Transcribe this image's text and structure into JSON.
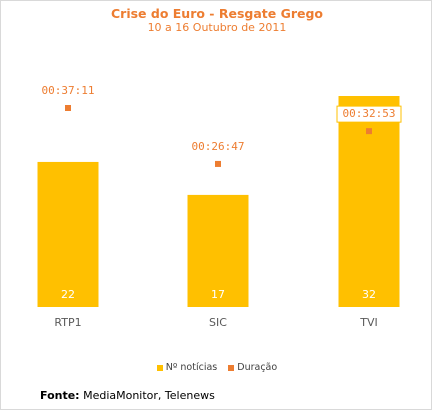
{
  "chart_data": {
    "type": "bar",
    "title": "Crise do Euro - Resgate Grego",
    "subtitle": "10 a 16 Outubro de 2011",
    "categories": [
      "RTP1",
      "SIC",
      "TVI"
    ],
    "series": [
      {
        "name": "Nº notícias",
        "type": "bar",
        "values": [
          22,
          17,
          32
        ],
        "color": "#ffc000"
      },
      {
        "name": "Duração",
        "type": "scatter",
        "values": [
          "00:37:11",
          "00:26:47",
          "00:32:53"
        ],
        "color": "#ed7d31"
      }
    ],
    "ylim": [
      0,
      37
    ],
    "duration_scale_seconds": [
      0,
      3600
    ],
    "grid": false,
    "legend": "bottom",
    "bar_label_color": "#ffffff",
    "label_color": "#ed7d31",
    "highlight_label_category": "TVI"
  },
  "source": {
    "prefix": "Fonte:",
    "text": " MediaMonitor, Telenews"
  }
}
